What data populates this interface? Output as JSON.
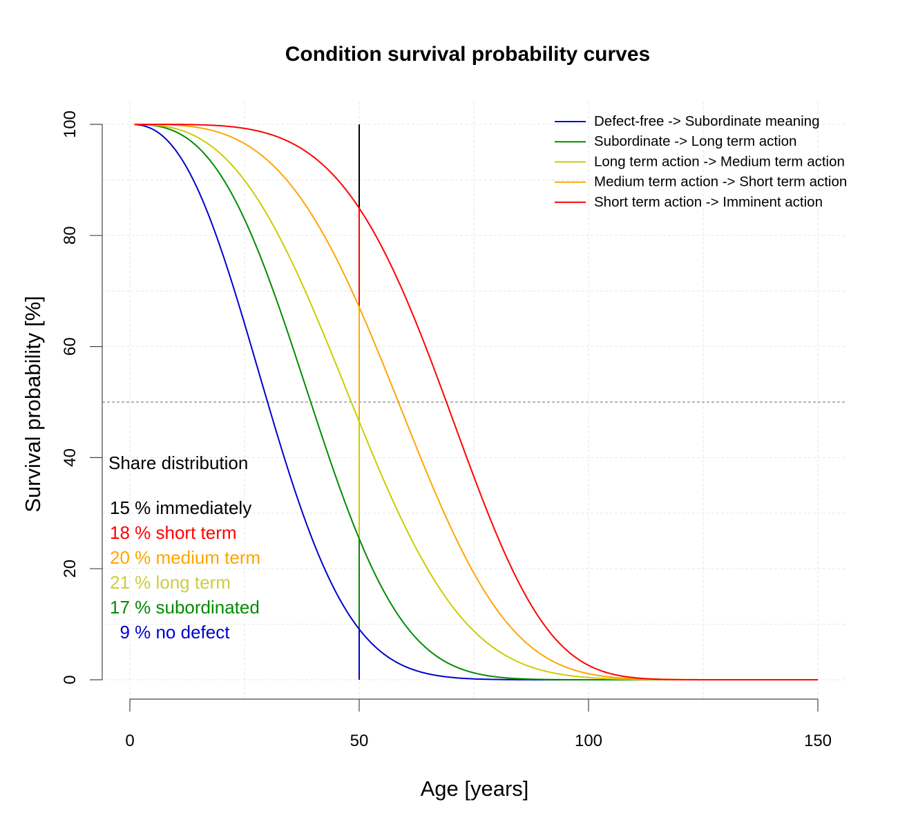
{
  "chart_data": {
    "type": "line",
    "title": "Condition survival probability curves",
    "xlabel": "Age [years]",
    "ylabel": "Survival probability [%]",
    "xlim": [
      0,
      150
    ],
    "ylim": [
      0,
      100
    ],
    "xticks": [
      0,
      50,
      100,
      150
    ],
    "yticks": [
      0,
      20,
      40,
      60,
      80,
      100
    ],
    "x_grid_step": 25,
    "y_grid_step": 10,
    "grid": true,
    "reference_line": {
      "y": 50,
      "style": "dashed",
      "color": "#888888"
    },
    "marker_age": 50,
    "x_start": 1,
    "x_end": 150,
    "legend_position": "top-right",
    "series": [
      {
        "name": "Defect-free  -> Subordinate meaning",
        "color": "#0000cc",
        "model": "weibull",
        "scale": 34.9,
        "shape": 2.43,
        "median": 30.2,
        "value_at_50": 8.5
      },
      {
        "name": "Subordinate  -> Long term action",
        "color": "#008b00",
        "model": "weibull",
        "scale": 44.8,
        "shape": 2.87,
        "median": 39.4,
        "value_at_50": 26
      },
      {
        "name": "Long term action -> Medium term action",
        "color": "#cccc00",
        "model": "weibull",
        "scale": 54.9,
        "shape": 2.85,
        "median": 48.3,
        "value_at_50": 46.5
      },
      {
        "name": "Medium term action -> Short term action",
        "color": "#ffa500",
        "model": "weibull",
        "scale": 65.0,
        "shape": 3.5,
        "median": 58.5,
        "value_at_50": 67
      },
      {
        "name": "Short term action -> Imminent action",
        "color": "#ff0000",
        "model": "weibull",
        "scale": 74.9,
        "shape": 4.48,
        "median": 68.9,
        "value_at_50": 85
      }
    ],
    "annotations": {
      "share_title": "Share distribution",
      "shares": [
        {
          "text": "15 % immediately",
          "color": "#000000",
          "percent": 15
        },
        {
          "text": "18 % short term",
          "color": "#ff0000",
          "percent": 18
        },
        {
          "text": "20 % medium term",
          "color": "#ffa500",
          "percent": 20
        },
        {
          "text": "21 % long term",
          "color": "#cdcd40",
          "percent": 21
        },
        {
          "text": "17 % subordinated",
          "color": "#008b00",
          "percent": 17
        },
        {
          "text": "  9 % no defect",
          "color": "#0000cc",
          "percent": 9
        }
      ]
    }
  }
}
